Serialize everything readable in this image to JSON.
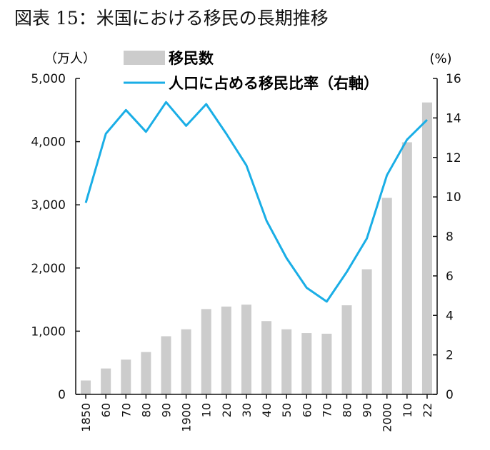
{
  "chart_data": {
    "type": "bar+line",
    "title": "図表 15：米国における移民の長期推移",
    "categories": [
      "1850",
      "60",
      "70",
      "80",
      "90",
      "1900",
      "10",
      "20",
      "30",
      "40",
      "50",
      "60",
      "70",
      "80",
      "90",
      "2000",
      "10",
      "22"
    ],
    "series": [
      {
        "name": "移民数",
        "type": "bar",
        "axis": "left",
        "values": [
          220,
          410,
          550,
          670,
          920,
          1030,
          1350,
          1390,
          1420,
          1160,
          1030,
          970,
          960,
          1410,
          1980,
          3110,
          3990,
          4620
        ]
      },
      {
        "name": "人口に占める移民比率（右軸）",
        "type": "line",
        "axis": "right",
        "values": [
          9.7,
          13.2,
          14.4,
          13.3,
          14.8,
          13.6,
          14.7,
          13.2,
          11.6,
          8.8,
          6.9,
          5.4,
          4.7,
          6.2,
          7.9,
          11.1,
          12.9,
          13.9
        ]
      }
    ],
    "y_left": {
      "label": "（万人）",
      "min": 0,
      "max": 5000,
      "ticks": [
        "0",
        "1,000",
        "2,000",
        "3,000",
        "4,000",
        "5,000"
      ]
    },
    "y_right": {
      "label": "(%)",
      "min": 0,
      "max": 16,
      "ticks": [
        "0",
        "2",
        "4",
        "6",
        "8",
        "10",
        "12",
        "14",
        "16"
      ]
    },
    "colors": {
      "bar": "#cccccc",
      "line": "#1aaee6",
      "axis": "#111111",
      "text": "#111111"
    },
    "legend_position": "top"
  }
}
